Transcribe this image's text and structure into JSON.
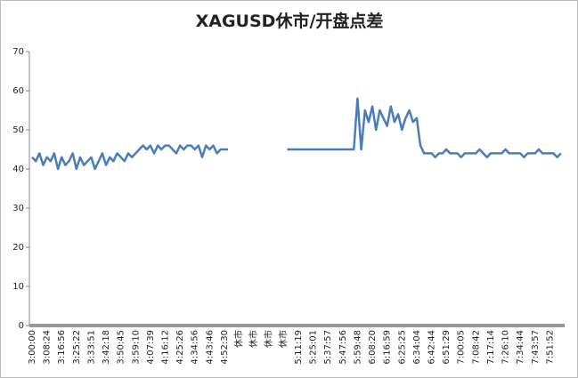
{
  "chart_data": {
    "type": "line",
    "title": "XAGUSD休市/开盘点差",
    "categories": [
      "3:00:00",
      null,
      null,
      null,
      "3:08:24",
      null,
      null,
      null,
      "3:16:56",
      null,
      null,
      null,
      "3:25:22",
      null,
      null,
      null,
      "3:33:51",
      null,
      null,
      null,
      "3:42:18",
      null,
      null,
      null,
      "3:50:45",
      null,
      null,
      null,
      "3:59:10",
      null,
      null,
      null,
      "4:07:39",
      null,
      null,
      null,
      "4:16:12",
      null,
      null,
      null,
      "4:25:26",
      null,
      null,
      null,
      "4:34:56",
      null,
      null,
      null,
      "4:43:46",
      null,
      null,
      null,
      "4:52:30",
      null,
      null,
      null,
      "休市",
      null,
      null,
      null,
      "休市",
      null,
      null,
      null,
      "休市",
      null,
      null,
      null,
      "休市",
      null,
      null,
      null,
      "5:11:19",
      null,
      null,
      null,
      "5:25:01",
      null,
      null,
      null,
      "5:37:57",
      null,
      null,
      null,
      "5:47:56",
      null,
      null,
      null,
      "5:59:48",
      null,
      null,
      null,
      "6:08:20",
      null,
      null,
      null,
      "6:16:59",
      null,
      null,
      null,
      "6:25:25",
      null,
      null,
      null,
      "6:34:04",
      null,
      null,
      null,
      "6:42:44",
      null,
      null,
      null,
      "6:51:29",
      null,
      null,
      null,
      "7:00:05",
      null,
      null,
      null,
      "7:08:42",
      null,
      null,
      null,
      "7:17:14",
      null,
      null,
      null,
      "7:26:10",
      null,
      null,
      null,
      "7:34:44",
      null,
      null,
      null,
      "7:43:57",
      null,
      null,
      null,
      "7:51:52",
      null,
      null,
      null
    ],
    "series": [
      {
        "name": "XAGUSD",
        "color": "#4a7ebb",
        "values": [
          43,
          42,
          44,
          41,
          43,
          42,
          44,
          40,
          43,
          41,
          42,
          44,
          40,
          43,
          41,
          42,
          43,
          40,
          42,
          44,
          41,
          43,
          42,
          44,
          43,
          42,
          44,
          43,
          44,
          45,
          46,
          45,
          46,
          44,
          46,
          45,
          46,
          46,
          45,
          44,
          46,
          45,
          46,
          46,
          45,
          46,
          43,
          46,
          45,
          46,
          44,
          45,
          45,
          45,
          null,
          null,
          null,
          null,
          null,
          null,
          null,
          null,
          null,
          null,
          null,
          null,
          null,
          null,
          null,
          45,
          45,
          45,
          45,
          45,
          45,
          45,
          45,
          45,
          45,
          45,
          45,
          45,
          45,
          45,
          45,
          45,
          45,
          45,
          58,
          45,
          55,
          52,
          56,
          50,
          55,
          53,
          51,
          56,
          52,
          54,
          50,
          53,
          55,
          52,
          53,
          46,
          44,
          44,
          44,
          43,
          44,
          44,
          45,
          44,
          44,
          44,
          43,
          44,
          44,
          44,
          44,
          45,
          44,
          43,
          44,
          44,
          44,
          44,
          45,
          44,
          44,
          44,
          44,
          43,
          44,
          44,
          44,
          45,
          44,
          44,
          44,
          44,
          43,
          44
        ]
      }
    ],
    "ylim": [
      0,
      70
    ],
    "yticks": [
      0,
      10,
      20,
      30,
      40,
      50,
      60,
      70
    ],
    "grid": false
  }
}
